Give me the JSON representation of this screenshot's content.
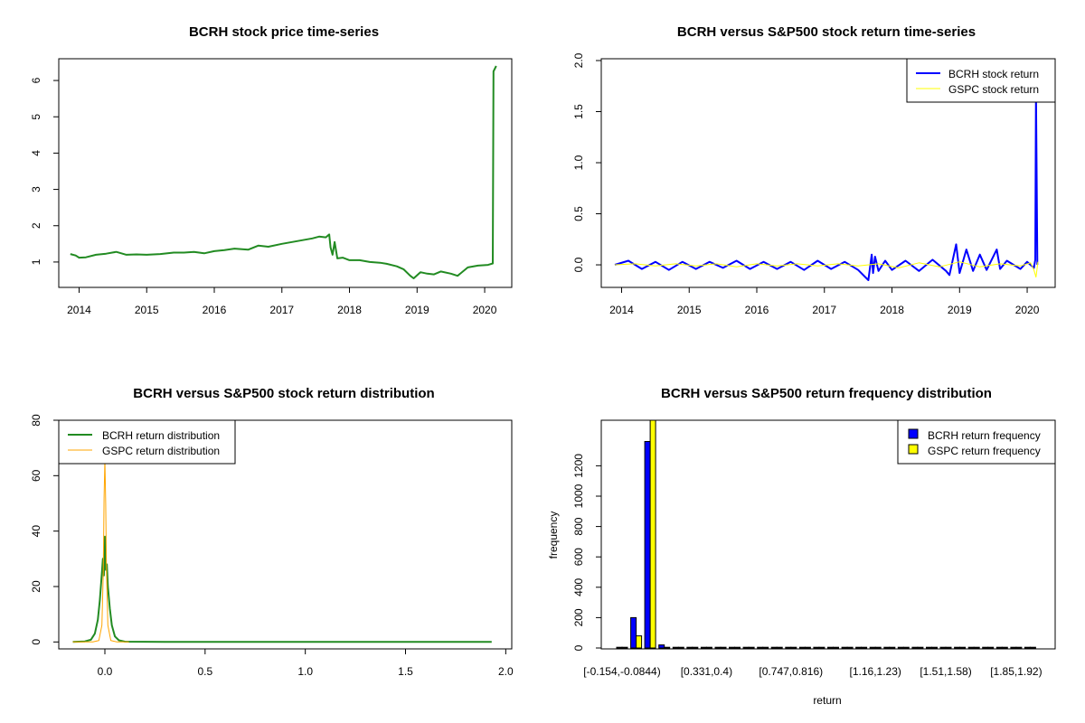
{
  "colors": {
    "green": "#228B22",
    "blue": "#0000FF",
    "yellow": "#FFFF00",
    "orange": "#FFA500"
  },
  "chart_data": [
    {
      "type": "line",
      "title": "BCRH stock price time-series",
      "xlim": [
        2013.9,
        2020.2
      ],
      "ylim": [
        0.5,
        6.4
      ],
      "xticks": [
        2014,
        2015,
        2016,
        2017,
        2018,
        2019,
        2020
      ],
      "xtick_labels": [
        "2014",
        "2015",
        "2016",
        "2017",
        "2018",
        "2019",
        "2020"
      ],
      "yticks": [
        1,
        2,
        3,
        4,
        5,
        6
      ],
      "ytick_labels": [
        "1",
        "2",
        "3",
        "4",
        "5",
        "6"
      ],
      "series": [
        {
          "name": "BCRH",
          "x": [
            2013.87,
            2013.95,
            2014.0,
            2014.1,
            2014.25,
            2014.4,
            2014.55,
            2014.7,
            2014.85,
            2015.0,
            2015.2,
            2015.4,
            2015.55,
            2015.7,
            2015.85,
            2016.0,
            2016.15,
            2016.3,
            2016.5,
            2016.65,
            2016.8,
            2017.0,
            2017.15,
            2017.3,
            2017.45,
            2017.55,
            2017.65,
            2017.7,
            2017.72,
            2017.75,
            2017.78,
            2017.82,
            2017.9,
            2018.0,
            2018.15,
            2018.3,
            2018.45,
            2018.55,
            2018.7,
            2018.8,
            2018.9,
            2018.95,
            2019.05,
            2019.15,
            2019.25,
            2019.35,
            2019.5,
            2019.6,
            2019.75,
            2019.9,
            2020.05,
            2020.12,
            2020.13,
            2020.17
          ],
          "y": [
            1.22,
            1.18,
            1.12,
            1.13,
            1.2,
            1.23,
            1.28,
            1.2,
            1.21,
            1.2,
            1.22,
            1.26,
            1.26,
            1.28,
            1.24,
            1.3,
            1.33,
            1.37,
            1.34,
            1.45,
            1.42,
            1.5,
            1.55,
            1.6,
            1.65,
            1.7,
            1.68,
            1.76,
            1.4,
            1.2,
            1.55,
            1.1,
            1.12,
            1.05,
            1.05,
            1.0,
            0.98,
            0.95,
            0.88,
            0.8,
            0.62,
            0.55,
            0.72,
            0.68,
            0.66,
            0.74,
            0.68,
            0.62,
            0.85,
            0.9,
            0.92,
            0.96,
            6.25,
            6.4
          ]
        }
      ]
    },
    {
      "type": "line",
      "title": "BCRH versus S&P500 stock return time-series",
      "xlim": [
        2013.9,
        2020.2
      ],
      "ylim": [
        -0.15,
        2.0
      ],
      "xticks": [
        2014,
        2015,
        2016,
        2017,
        2018,
        2019,
        2020
      ],
      "xtick_labels": [
        "2014",
        "2015",
        "2016",
        "2017",
        "2018",
        "2019",
        "2020"
      ],
      "yticks": [
        0.0,
        0.5,
        1.0,
        1.5,
        2.0
      ],
      "ytick_labels": [
        "0.0",
        "0.5",
        "1.0",
        "1.5",
        "2.0"
      ],
      "legend": [
        "BCRH stock return",
        "GSPC stock return"
      ],
      "series": [
        {
          "name": "BCRH stock return",
          "x": [
            2013.9,
            2014.1,
            2014.3,
            2014.5,
            2014.7,
            2014.9,
            2015.1,
            2015.3,
            2015.5,
            2015.7,
            2015.9,
            2016.1,
            2016.3,
            2016.5,
            2016.7,
            2016.9,
            2017.1,
            2017.3,
            2017.5,
            2017.65,
            2017.7,
            2017.72,
            2017.75,
            2017.8,
            2017.9,
            2018.0,
            2018.2,
            2018.4,
            2018.6,
            2018.8,
            2018.85,
            2018.95,
            2019.0,
            2019.1,
            2019.2,
            2019.3,
            2019.4,
            2019.55,
            2019.6,
            2019.7,
            2019.9,
            2020.0,
            2020.1,
            2020.12,
            2020.13,
            2020.15
          ],
          "y": [
            0.0,
            0.04,
            -0.04,
            0.03,
            -0.05,
            0.03,
            -0.04,
            0.03,
            -0.03,
            0.04,
            -0.04,
            0.03,
            -0.04,
            0.03,
            -0.05,
            0.04,
            -0.04,
            0.03,
            -0.05,
            -0.15,
            0.1,
            -0.08,
            0.08,
            -0.06,
            0.04,
            -0.05,
            0.04,
            -0.06,
            0.05,
            -0.06,
            -0.1,
            0.2,
            -0.08,
            0.15,
            -0.06,
            0.1,
            -0.05,
            0.15,
            -0.04,
            0.04,
            -0.04,
            0.03,
            -0.03,
            0.05,
            1.7,
            0.0
          ]
        },
        {
          "name": "GSPC stock return",
          "x": [
            2013.9,
            2014.2,
            2014.5,
            2014.8,
            2015.1,
            2015.4,
            2015.7,
            2016.0,
            2016.3,
            2016.6,
            2016.9,
            2017.2,
            2017.5,
            2017.8,
            2018.1,
            2018.4,
            2018.7,
            2019.0,
            2019.3,
            2019.6,
            2019.9,
            2020.05,
            2020.1,
            2020.13,
            2020.16
          ],
          "y": [
            0.0,
            0.01,
            -0.01,
            0.01,
            -0.01,
            0.01,
            -0.02,
            0.01,
            -0.01,
            0.01,
            -0.01,
            0.01,
            -0.01,
            0.01,
            -0.03,
            0.02,
            -0.02,
            0.03,
            -0.02,
            0.01,
            -0.01,
            0.02,
            -0.05,
            -0.12,
            0.03
          ]
        }
      ]
    },
    {
      "type": "line",
      "title": "BCRH versus S&P500 stock return distribution",
      "xlim": [
        -0.23,
        2.03
      ],
      "ylim": [
        -2.5,
        80
      ],
      "xticks": [
        0.0,
        0.5,
        1.0,
        1.5,
        2.0
      ],
      "xtick_labels": [
        "0.0",
        "0.5",
        "1.0",
        "1.5",
        "2.0"
      ],
      "yticks": [
        0,
        20,
        40,
        60,
        80
      ],
      "ytick_labels": [
        "0",
        "20",
        "40",
        "60",
        "80"
      ],
      "legend": [
        "BCRH return distribution",
        "GSPC return distribution"
      ],
      "series": [
        {
          "name": "BCRH return distribution",
          "x": [
            -0.16,
            -0.1,
            -0.07,
            -0.05,
            -0.035,
            -0.025,
            -0.015,
            -0.01,
            -0.005,
            0.0,
            0.005,
            0.01,
            0.015,
            0.025,
            0.035,
            0.05,
            0.07,
            0.1,
            0.3,
            1.0,
            1.6,
            1.93
          ],
          "y": [
            0,
            0.2,
            0.8,
            3,
            8,
            15,
            25,
            30,
            24,
            38,
            26,
            28,
            20,
            12,
            6,
            2,
            0.6,
            0.1,
            0.05,
            0,
            0,
            0
          ]
        },
        {
          "name": "GSPC return distribution",
          "x": [
            -0.16,
            -0.06,
            -0.03,
            -0.015,
            -0.008,
            -0.004,
            0.0,
            0.004,
            0.008,
            0.015,
            0.03,
            0.06,
            0.12
          ],
          "y": [
            0,
            0,
            0.5,
            6,
            25,
            52,
            66,
            50,
            25,
            6,
            0.5,
            0,
            0
          ]
        }
      ]
    },
    {
      "type": "bar",
      "title": "BCRH versus S&P500 return frequency distribution",
      "xlabel": "return",
      "ylabel": "frequency",
      "ylim": [
        0,
        1500
      ],
      "yticks": [
        0,
        200,
        400,
        600,
        800,
        1000,
        1200
      ],
      "ytick_labels": [
        "0",
        "200",
        "400",
        "600",
        "800",
        "1000",
        "1200"
      ],
      "n_categories": 30,
      "category_tick_labels": [
        {
          "index": 0,
          "label": "[-0.154,-0.0844)"
        },
        {
          "index": 6,
          "label": "[0.331,0.4)"
        },
        {
          "index": 12,
          "label": "[0.747,0.816)"
        },
        {
          "index": 18,
          "label": "[1.16,1.23)"
        },
        {
          "index": 23,
          "label": "[1.51,1.58)"
        },
        {
          "index": 28,
          "label": "[1.85,1.92)"
        }
      ],
      "legend": [
        "BCRH return frequency",
        "GSPC return frequency"
      ],
      "series": [
        {
          "name": "BCRH return frequency",
          "values": [
            5,
            200,
            1360,
            20,
            3,
            2,
            1,
            1,
            1,
            1,
            1,
            1,
            1,
            1,
            1,
            1,
            1,
            1,
            1,
            1,
            1,
            1,
            1,
            1,
            1,
            1,
            1,
            1,
            1,
            1
          ]
        },
        {
          "name": "GSPC return frequency",
          "values": [
            0,
            80,
            1500,
            5,
            0,
            0,
            0,
            0,
            0,
            0,
            0,
            0,
            0,
            0,
            0,
            0,
            0,
            0,
            0,
            0,
            0,
            0,
            0,
            0,
            0,
            0,
            0,
            0,
            0,
            0
          ]
        }
      ]
    }
  ]
}
